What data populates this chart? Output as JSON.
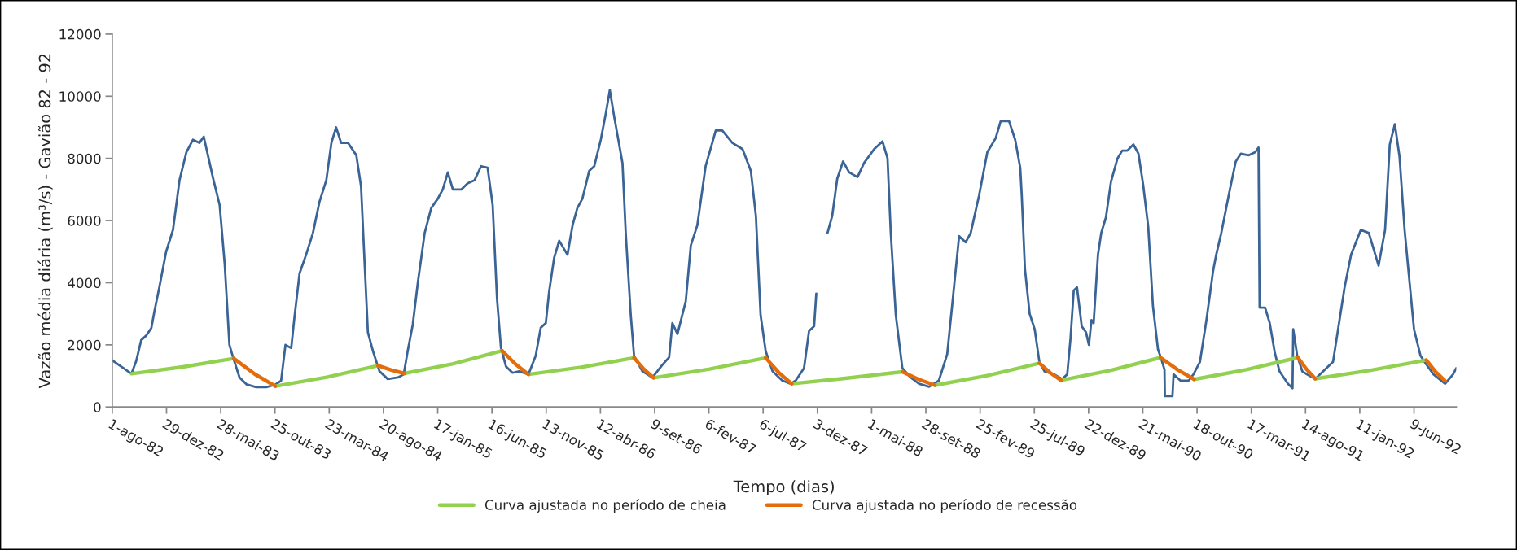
{
  "chart_data": {
    "type": "line",
    "xlabel": "Tempo (dias)",
    "ylabel": "Vazão média diária (m³/s) - Gavião 82 - 92",
    "xlim": [
      "1982-08-01",
      "1992-10-04"
    ],
    "ylim": [
      0,
      12000
    ],
    "yticks": [
      0,
      2000,
      4000,
      6000,
      8000,
      10000,
      12000
    ],
    "xticks": [
      {
        "value": "1982-08-01",
        "label": "1-ago-82"
      },
      {
        "value": "1982-12-29",
        "label": "29-dez-82"
      },
      {
        "value": "1983-05-28",
        "label": "28-mai-83"
      },
      {
        "value": "1983-10-25",
        "label": "25-out-83"
      },
      {
        "value": "1984-03-23",
        "label": "23-mar-84"
      },
      {
        "value": "1984-08-20",
        "label": "20-ago-84"
      },
      {
        "value": "1985-01-17",
        "label": "17-jan-85"
      },
      {
        "value": "1985-06-16",
        "label": "16-jun-85"
      },
      {
        "value": "1985-11-13",
        "label": "13-nov-85"
      },
      {
        "value": "1986-04-12",
        "label": "12-abr-86"
      },
      {
        "value": "1986-09-09",
        "label": "9-set-86"
      },
      {
        "value": "1987-02-06",
        "label": "6-fev-87"
      },
      {
        "value": "1987-07-06",
        "label": "6-jul-87"
      },
      {
        "value": "1987-12-03",
        "label": "3-dez-87"
      },
      {
        "value": "1988-05-01",
        "label": "1-mai-88"
      },
      {
        "value": "1988-09-28",
        "label": "28-set-88"
      },
      {
        "value": "1989-02-25",
        "label": "25-fev-89"
      },
      {
        "value": "1989-07-25",
        "label": "25-jul-89"
      },
      {
        "value": "1989-12-22",
        "label": "22-dez-89"
      },
      {
        "value": "1990-05-21",
        "label": "21-mai-90"
      },
      {
        "value": "1990-10-18",
        "label": "18-out-90"
      },
      {
        "value": "1991-03-17",
        "label": "17-mar-91"
      },
      {
        "value": "1991-08-14",
        "label": "14-ago-91"
      },
      {
        "value": "1992-01-11",
        "label": "11-jan-92"
      },
      {
        "value": "1992-06-09",
        "label": "9-jun-92"
      }
    ],
    "grid": false,
    "legend": "bottom",
    "marker": "none",
    "line_style": "solid",
    "series": [
      {
        "color": "#3b6496",
        "x": [
          "1982-08-01",
          "1982-08-26",
          "1982-09-23",
          "1982-10-06",
          "1982-10-20",
          "1982-11-03",
          "1982-11-17",
          "1982-11-26",
          "1982-12-10",
          "1982-12-28",
          "1983-01-16",
          "1983-02-03",
          "1983-02-22",
          "1983-03-12",
          "1983-03-30",
          "1983-04-11",
          "1983-05-06",
          "1983-05-25",
          "1983-06-08",
          "1983-06-21",
          "1983-07-01",
          "1983-07-19",
          "1983-08-07",
          "1983-09-03",
          "1983-10-01",
          "1983-10-26",
          "1983-11-11",
          "1983-11-23",
          "1983-11-30",
          "1983-12-09",
          "1983-12-18",
          "1984-01-01",
          "1984-01-19",
          "1984-02-07",
          "1984-02-25",
          "1984-03-15",
          "1984-03-29",
          "1984-04-11",
          "1984-04-25",
          "1984-05-14",
          "1984-06-06",
          "1984-06-19",
          "1984-06-29",
          "1984-07-08",
          "1984-07-22",
          "1984-08-09",
          "1984-09-01",
          "1984-09-29",
          "1984-10-15",
          "1984-10-26",
          "1984-11-09",
          "1984-11-23",
          "1984-12-12",
          "1984-12-30",
          "1985-01-17",
          "1985-01-31",
          "1985-02-14",
          "1985-02-28",
          "1985-03-23",
          "1985-04-10",
          "1985-04-29",
          "1985-05-17",
          "1985-06-04",
          "1985-06-18",
          "1985-06-30",
          "1985-07-11",
          "1985-07-25",
          "1985-08-12",
          "1985-08-30",
          "1985-09-25",
          "1985-10-15",
          "1985-10-29",
          "1985-11-12",
          "1985-11-21",
          "1985-12-05",
          "1985-12-19",
          "1986-01-11",
          "1986-01-25",
          "1986-02-07",
          "1986-02-21",
          "1986-03-12",
          "1986-03-26",
          "1986-04-13",
          "1986-04-27",
          "1986-05-08",
          "1986-05-20",
          "1986-06-12",
          "1986-06-21",
          "1986-07-05",
          "1986-07-14",
          "1986-08-06",
          "1986-09-03",
          "1986-09-30",
          "1986-10-19",
          "1986-10-28",
          "1986-11-11",
          "1986-12-04",
          "1986-12-18",
          "1987-01-05",
          "1987-01-28",
          "1987-02-25",
          "1987-03-15",
          "1987-04-12",
          "1987-05-10",
          "1987-06-02",
          "1987-06-16",
          "1987-06-29",
          "1987-07-13",
          "1987-08-01",
          "1987-08-28",
          "1987-09-20",
          "1987-10-04",
          "1987-10-27",
          "1987-11-10",
          "1987-11-24",
          "1987-11-30",
          "1987-12-13",
          "1987-12-31",
          "1988-01-13",
          "1988-01-27",
          "1988-02-12",
          "1988-02-29",
          "1988-03-23",
          "1988-04-10",
          "1988-05-08",
          "1988-05-31",
          "1988-06-14",
          "1988-06-23",
          "1988-07-07",
          "1988-07-25",
          "1988-08-17",
          "1988-09-09",
          "1988-10-07",
          "1988-11-03",
          "1988-11-26",
          "1988-12-10",
          "1988-12-29",
          "1989-01-16",
          "1989-01-30",
          "1989-02-22",
          "1989-03-17",
          "1989-04-09",
          "1989-04-23",
          "1989-05-16",
          "1989-06-02",
          "1989-06-16",
          "1989-06-20",
          "1989-06-29",
          "1989-07-12",
          "1989-07-26",
          "1989-08-08",
          "1989-08-22",
          "1989-09-18",
          "1989-10-10",
          "1989-10-24",
          "1989-11-02",
          "1989-11-11",
          "1989-11-20",
          "1989-12-03",
          "1989-12-15",
          "1989-12-23",
          "1989-12-30",
          "1990-01-05",
          "1990-01-17",
          "1990-01-26",
          "1990-02-08",
          "1990-02-22",
          "1990-03-12",
          "1990-03-25",
          "1990-04-08",
          "1990-04-25",
          "1990-05-09",
          "1990-05-22",
          "1990-06-05",
          "1990-06-18",
          "1990-07-02",
          "1990-07-11",
          "1990-07-20",
          "1990-07-21",
          "1990-08-11",
          "1990-08-14",
          "1990-09-02",
          "1990-09-25",
          "1990-10-08",
          "1990-10-26",
          "1990-11-13",
          "1990-12-01",
          "1990-12-10",
          "1990-12-24",
          "1991-01-15",
          "1991-02-02",
          "1991-02-16",
          "1991-03-10",
          "1991-03-28",
          "1991-04-06",
          "1991-04-09",
          "1991-04-24",
          "1991-05-07",
          "1991-05-21",
          "1991-06-03",
          "1991-06-26",
          "1991-07-09",
          "1991-07-11",
          "1991-07-22",
          "1991-08-05",
          "1991-08-18",
          "1991-09-10",
          "1991-10-02",
          "1991-10-29",
          "1991-11-16",
          "1991-11-30",
          "1991-12-18",
          "1992-01-14",
          "1992-02-05",
          "1992-03-03",
          "1992-03-21",
          "1992-04-03",
          "1992-04-17",
          "1992-04-30",
          "1992-05-14",
          "1992-06-09",
          "1992-06-27",
          "1992-07-11",
          "1992-08-02",
          "1992-09-03",
          "1992-09-25",
          "1992-10-04"
        ],
        "values": [
          1500,
          1300,
          1070,
          1470,
          2150,
          2300,
          2540,
          3100,
          3900,
          5000,
          5700,
          7300,
          8200,
          8600,
          8500,
          8700,
          7400,
          6500,
          4600,
          2000,
          1600,
          950,
          730,
          640,
          640,
          720,
          850,
          2000,
          1950,
          1900,
          2900,
          4300,
          4900,
          5600,
          6600,
          7300,
          8500,
          9000,
          8500,
          8500,
          8100,
          7100,
          4600,
          2400,
          1800,
          1150,
          900,
          950,
          1050,
          1800,
          2650,
          4000,
          5600,
          6400,
          6700,
          7000,
          7550,
          7000,
          7000,
          7200,
          7300,
          7750,
          7700,
          6500,
          3500,
          1900,
          1300,
          1100,
          1150,
          1050,
          1650,
          2550,
          2700,
          3700,
          4800,
          5350,
          4900,
          5850,
          6400,
          6700,
          7600,
          7750,
          8600,
          9450,
          10200,
          9350,
          7850,
          5600,
          2950,
          1650,
          1150,
          950,
          1350,
          1600,
          2700,
          2350,
          3400,
          5200,
          5850,
          7750,
          8900,
          8900,
          8500,
          8300,
          7600,
          6150,
          2950,
          1800,
          1150,
          850,
          750,
          850,
          1250,
          2450,
          2600,
          3650,
          null,
          5600,
          6150,
          7350,
          7900,
          7550,
          7400,
          7850,
          8300,
          8550,
          8000,
          5600,
          2950,
          1250,
          950,
          750,
          650,
          850,
          1700,
          3300,
          5500,
          5300,
          5600,
          6800,
          8200,
          8650,
          9200,
          9200,
          8600,
          7700,
          6850,
          4450,
          3000,
          2500,
          1450,
          1150,
          1050,
          900,
          1050,
          2200,
          3750,
          3850,
          2600,
          2400,
          2000,
          2800,
          2700,
          4900,
          5600,
          6100,
          7250,
          8000,
          8250,
          8250,
          8450,
          8150,
          7150,
          5800,
          3250,
          1850,
          1550,
          1200,
          350,
          350,
          1050,
          850,
          850,
          1050,
          1450,
          2800,
          4350,
          4900,
          5600,
          6900,
          7900,
          8150,
          8100,
          8200,
          8350,
          3200,
          3200,
          2700,
          1750,
          1150,
          750,
          600,
          2500,
          1650,
          1150,
          1050,
          900,
          1150,
          1450,
          2800,
          3850,
          4900,
          5700,
          5600,
          4550,
          5700,
          8450,
          9100,
          8050,
          5700,
          2500,
          1650,
          1400,
          1050,
          750,
          1050,
          1250
        ]
      },
      {
        "name": "Curva ajustada no período de cheia",
        "color": "#92d050",
        "x": [
          "1982-09-23",
          "1983-02-12",
          "1983-07-03",
          "1983-08-26",
          "1983-10-26",
          "1984-03-16",
          "1984-08-05",
          "1984-09-09",
          "1984-10-17",
          "1985-03-01",
          "1985-07-14",
          "1985-08-20",
          "1985-09-25",
          "1986-02-18",
          "1986-07-14",
          "1986-08-10",
          "1986-09-06",
          "1987-02-08",
          "1987-07-13",
          "1987-08-15",
          "1987-09-23",
          "1988-02-23",
          "1988-07-25",
          "1988-09-08",
          "1988-10-23",
          "1989-03-17",
          "1989-08-08",
          "1989-09-07",
          "1989-10-07",
          "1990-02-22",
          "1990-07-09",
          "1990-08-25",
          "1990-10-10",
          "1991-03-03",
          "1991-07-24",
          "1991-08-17",
          "1991-09-10",
          "1992-02-10",
          "1992-07-13"
        ],
        "values": [
          1070,
          1290,
          1560,
          null,
          670,
          960,
          1330,
          null,
          1080,
          1390,
          1810,
          null,
          1050,
          1280,
          1580,
          null,
          940,
          1220,
          1580,
          null,
          750,
          930,
          1130,
          null,
          700,
          1010,
          1410,
          null,
          860,
          1180,
          1590,
          null,
          890,
          1200,
          1590,
          null,
          910,
          1180,
          1510
        ]
      },
      {
        "name": "Curva ajustada no período de recessão",
        "color": "#e46c0a",
        "x": [
          "1983-07-03",
          "1983-08-30",
          "1983-10-26",
          "1984-03-23",
          "1984-08-05",
          "1984-09-11",
          "1984-10-17",
          "1985-03-08",
          "1985-07-14",
          "1985-08-20",
          "1985-09-25",
          "1986-02-21",
          "1986-07-14",
          "1986-08-10",
          "1986-09-06",
          "1987-02-06",
          "1987-07-13",
          "1987-08-18",
          "1987-09-23",
          "1988-02-21",
          "1988-07-25",
          "1988-09-08",
          "1988-10-23",
          "1989-03-17",
          "1989-08-08",
          "1989-09-07",
          "1989-10-07",
          "1990-02-20",
          "1990-07-09",
          "1990-08-25",
          "1990-10-10",
          "1991-02-25",
          "1991-07-24",
          "1991-08-17",
          "1991-09-10",
          "1992-02-10",
          "1992-07-13",
          "1992-08-08",
          "1992-09-03"
        ],
        "values": [
          1560,
          1060,
          670,
          null,
          1330,
          1190,
          1080,
          null,
          1810,
          1380,
          1050,
          null,
          1580,
          1220,
          940,
          null,
          1580,
          1110,
          750,
          null,
          1130,
          890,
          700,
          null,
          1410,
          1100,
          860,
          null,
          1590,
          1200,
          890,
          null,
          1590,
          1210,
          910,
          null,
          1510,
          1130,
          840
        ]
      }
    ]
  }
}
